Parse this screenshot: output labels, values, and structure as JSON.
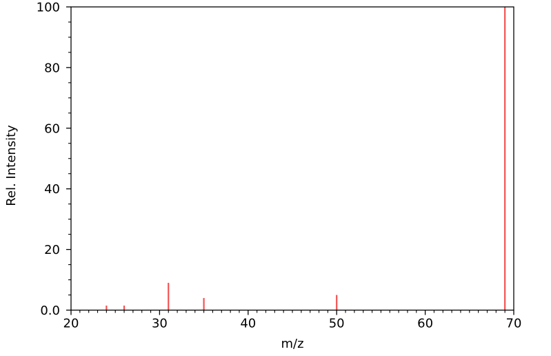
{
  "chart_data": {
    "type": "bar",
    "subtype": "mass-spectrum-stick-plot",
    "xlabel": "m/z",
    "ylabel": "Rel. Intensity",
    "xlim": [
      20,
      70
    ],
    "ylim": [
      0,
      100
    ],
    "grid": false,
    "legend": null,
    "x_major_ticks": [
      20,
      30,
      40,
      50,
      60,
      70
    ],
    "x_major_tick_labels": [
      "20",
      "30",
      "40",
      "50",
      "60",
      "70"
    ],
    "x_minor_tick_step": 1,
    "y_major_ticks": [
      0,
      20,
      40,
      60,
      80,
      100
    ],
    "y_major_tick_labels": [
      "0.0",
      "20",
      "40",
      "60",
      "80",
      "100"
    ],
    "y_minor_tick_step": 5,
    "series": [
      {
        "name": "relative-intensity-peaks",
        "color": "#f45353",
        "points": [
          {
            "x": 24,
            "y": 1.5
          },
          {
            "x": 26,
            "y": 1.5
          },
          {
            "x": 31,
            "y": 9
          },
          {
            "x": 35,
            "y": 4
          },
          {
            "x": 50,
            "y": 5
          },
          {
            "x": 69,
            "y": 100
          }
        ]
      }
    ],
    "colors": {
      "axis": "#000000",
      "tick_label": "#000000",
      "peak": "#f45353",
      "background": "#ffffff"
    }
  }
}
